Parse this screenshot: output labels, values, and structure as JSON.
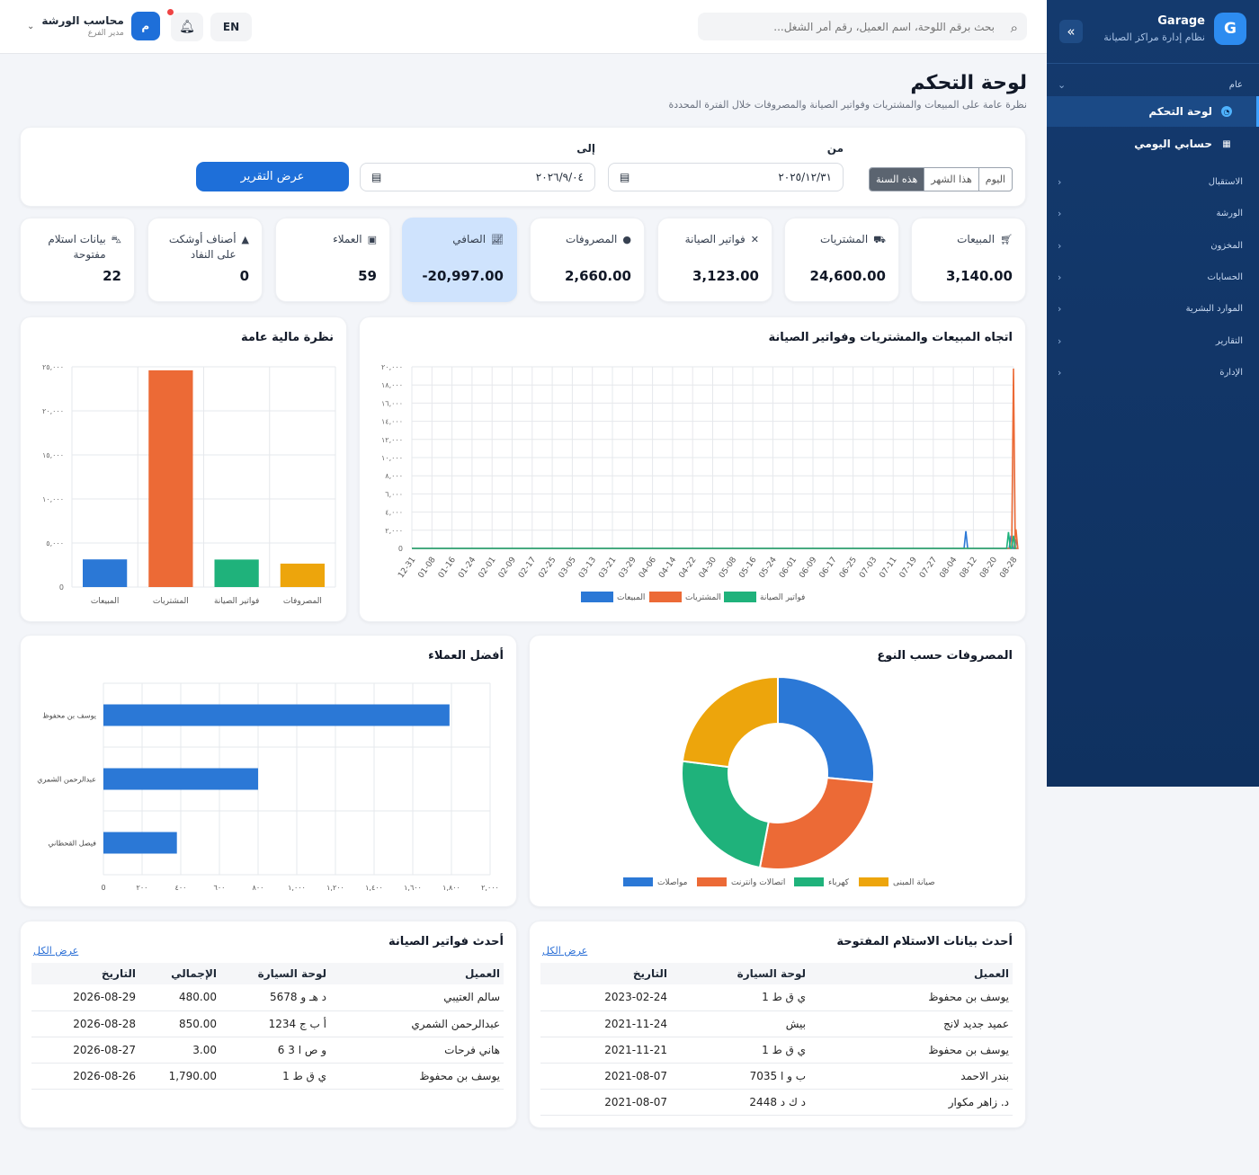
{
  "brand": {
    "name": "Garage",
    "subtitle": "نظام إدارة مراكز الصيانة",
    "logo": "G"
  },
  "sidebar": {
    "group_general": "عام",
    "items": [
      {
        "label": "لوحة التحكم",
        "icon": "gauge-icon",
        "active": true
      },
      {
        "label": "حسابي اليومي",
        "icon": "calculator-icon",
        "active": false
      }
    ],
    "groups": [
      "الاستقبال",
      "الورشة",
      "المخزون",
      "الحسابات",
      "الموارد البشرية",
      "التقارير",
      "الإدارة"
    ]
  },
  "topbar": {
    "search_placeholder": "بحث برقم اللوحة، اسم العميل، رقم أمر الشغل...",
    "lang": "EN",
    "user_name": "محاسب الورشة",
    "user_role": "مدير الفرع",
    "avatar_letter": "م"
  },
  "page": {
    "title": "لوحة التحكم",
    "subtitle": "نظرة عامة على المبيعات والمشتريات وفواتير الصيانة والمصروفات خلال الفترة المحددة"
  },
  "filters": {
    "periods": [
      "اليوم",
      "هذا الشهر",
      "هذه السنة"
    ],
    "selected_period": "هذه السنة",
    "from_label": "من",
    "to_label": "إلى",
    "from_value": "٢٠٢٥/١٢/٣١",
    "to_value": "٢٠٢٦/٩/٠٤",
    "submit": "عرض التقرير"
  },
  "stats": [
    {
      "label": "المبيعات",
      "value": "3,140.00",
      "icon": "cart-icon"
    },
    {
      "label": "المشتريات",
      "value": "24,600.00",
      "icon": "truck-icon"
    },
    {
      "label": "فواتير الصيانة",
      "value": "3,123.00",
      "icon": "tools-icon"
    },
    {
      "label": "المصروفات",
      "value": "2,660.00",
      "icon": "money-bag-icon"
    },
    {
      "label": "الصافي",
      "value": "-20,997.00",
      "icon": "chart-line-icon",
      "highlight": true
    },
    {
      "label": "العملاء",
      "value": "59",
      "icon": "contact-card-icon"
    },
    {
      "label": "أصناف أوشكت على النفاد",
      "value": "0",
      "icon": "warning-icon"
    },
    {
      "label": "بيانات استلام مفتوحة",
      "value": "22",
      "icon": "car-icon"
    }
  ],
  "colors": {
    "blue": "#2b78d6",
    "orange": "#ec6a36",
    "green": "#1fb27b",
    "amber": "#eda50c",
    "primary": "#1e6fd9",
    "sidebar": "#143a6e"
  },
  "chart_data": [
    {
      "type": "line",
      "title": "اتجاه المبيعات والمشتريات وفواتير الصيانة",
      "x": [
        "12-31",
        "01-08",
        "01-16",
        "01-24",
        "02-01",
        "02-09",
        "02-17",
        "02-25",
        "03-05",
        "03-13",
        "03-21",
        "03-29",
        "04-06",
        "04-14",
        "04-22",
        "04-30",
        "05-08",
        "05-16",
        "05-24",
        "06-01",
        "06-09",
        "06-17",
        "06-25",
        "07-03",
        "07-11",
        "07-19",
        "07-27",
        "08-04",
        "08-12",
        "08-20",
        "08-28"
      ],
      "y_ticks": [
        "0",
        "٢,٠٠٠",
        "٤,٠٠٠",
        "٦,٠٠٠",
        "٨,٠٠٠",
        "١٠,٠٠٠",
        "١٢,٠٠٠",
        "١٤,٠٠٠",
        "١٦,٠٠٠",
        "١٨,٠٠٠",
        "٢٠,٠٠٠"
      ],
      "ylim": [
        0,
        20000
      ],
      "series": [
        {
          "name": "المبيعات",
          "color": "#2b78d6",
          "points": [
            [
              "08-09",
              1900
            ],
            [
              "08-27",
              1400
            ],
            [
              "08-29",
              1000
            ]
          ]
        },
        {
          "name": "المشتريات",
          "color": "#ec6a36",
          "points": [
            [
              "08-28",
              19800
            ],
            [
              "08-29",
              2100
            ]
          ]
        },
        {
          "name": "فواتير الصيانة",
          "color": "#1fb27b",
          "points": [
            [
              "08-26",
              1800
            ],
            [
              "08-28",
              1400
            ]
          ]
        }
      ],
      "legend": "bottom"
    },
    {
      "type": "bar",
      "title": "نظرة مالية عامة",
      "categories": [
        "المبيعات",
        "المشتريات",
        "فواتير الصيانة",
        "المصروفات"
      ],
      "values": [
        3140,
        24600,
        3123,
        2660
      ],
      "colors": [
        "#2b78d6",
        "#ec6a36",
        "#1fb27b",
        "#eda50c"
      ],
      "y_ticks": [
        "0",
        "٥,٠٠٠",
        "١٠,٠٠٠",
        "١٥,٠٠٠",
        "٢٠,٠٠٠",
        "٢٥,٠٠٠"
      ],
      "ylim": [
        0,
        25000
      ]
    },
    {
      "type": "pie",
      "title": "المصروفات حسب النوع",
      "labels": [
        "مواصلات",
        "اتصالات وانترنت",
        "كهرباء",
        "صيانة المبنى"
      ],
      "values": [
        26.5,
        26.5,
        24,
        23
      ],
      "colors": [
        "#2b78d6",
        "#ec6a36",
        "#1fb27b",
        "#eda50c"
      ],
      "legend": "bottom"
    },
    {
      "type": "bar",
      "orientation": "horizontal",
      "title": "أفضل العملاء",
      "categories": [
        "يوسف بن محفوظ",
        "عبدالرحمن الشمري",
        "فيصل القحطاني"
      ],
      "values": [
        1790,
        800,
        380
      ],
      "x_ticks": [
        "0",
        "٢٠٠",
        "٤٠٠",
        "٦٠٠",
        "٨٠٠",
        "١,٠٠٠",
        "١,٢٠٠",
        "١,٤٠٠",
        "١,٦٠٠",
        "١,٨٠٠",
        "٢,٠٠٠"
      ],
      "xlim": [
        0,
        2000
      ],
      "color": "#2b78d6"
    }
  ],
  "receipts": {
    "title": "أحدث بيانات الاستلام المفتوحة",
    "view_all": "عرض الكل",
    "columns": [
      "العميل",
      "لوحة السيارة",
      "التاريخ"
    ],
    "rows": [
      [
        "يوسف بن محفوظ",
        "ي ق ط 1",
        "2023-02-24"
      ],
      [
        "عميد جديد لانج",
        "بيش",
        "2021-11-24"
      ],
      [
        "يوسف بن محفوظ",
        "ي ق ط 1",
        "2021-11-21"
      ],
      [
        "بندر الاحمد",
        "ب و ا 7035",
        "2021-08-07"
      ],
      [
        "د. زاهر مكوار",
        "د ك د 2448",
        "2021-08-07"
      ]
    ]
  },
  "invoices": {
    "title": "أحدث فواتير الصيانة",
    "view_all": "عرض الكل",
    "columns": [
      "العميل",
      "لوحة السيارة",
      "الإجمالي",
      "التاريخ"
    ],
    "rows": [
      [
        "سالم العتيبي",
        "د هـ و 5678",
        "480.00",
        "2026-08-29"
      ],
      [
        "عبدالرحمن الشمري",
        "أ ب ج 1234",
        "850.00",
        "2026-08-28"
      ],
      [
        "هاني فرحات",
        "و ص ا 3 6",
        "3.00",
        "2026-08-27"
      ],
      [
        "يوسف بن محفوظ",
        "ي ق ط 1",
        "1,790.00",
        "2026-08-26"
      ]
    ]
  }
}
